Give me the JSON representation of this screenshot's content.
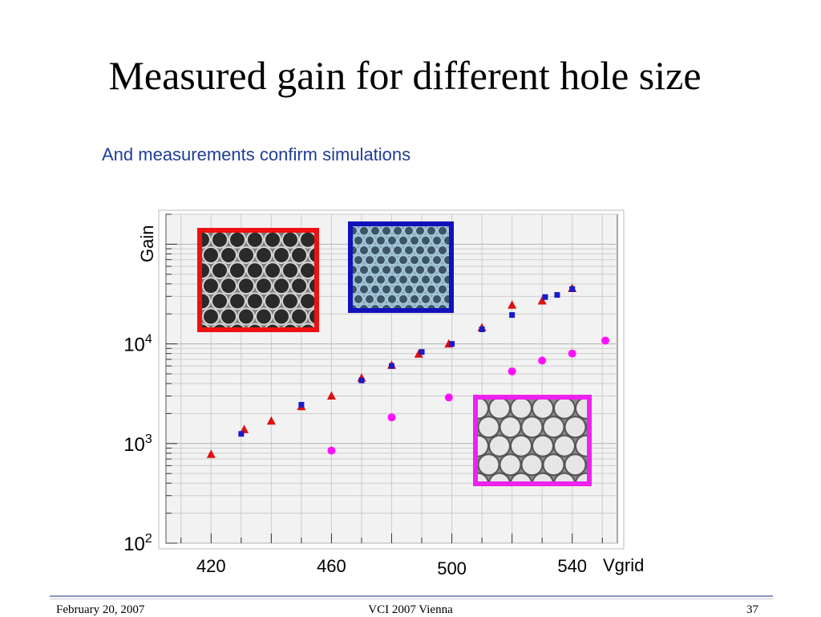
{
  "slide": {
    "title": "Measured gain for different hole size",
    "subtitle": "And measurements confirm simulations"
  },
  "footer": {
    "date": "February 20, 2007",
    "event": "VCI 2007 Vienna",
    "page": "37"
  },
  "colors": {
    "frame": "#ffffff",
    "plot_bg": "#f2f2f2",
    "grid": "#cccccc",
    "red": "#e01010",
    "blue": "#1a1acc",
    "magenta": "#ff10ff",
    "inset_red_border": "#ee1111",
    "inset_blue_border": "#1111bb",
    "inset_magenta_border": "#ee22ee"
  },
  "chart_data": {
    "type": "scatter",
    "title": "",
    "xlabel": "Vgrid",
    "ylabel": "Gain",
    "xlim": [
      405,
      555
    ],
    "ylim": [
      100,
      200000
    ],
    "y_scale": "log",
    "grid": true,
    "x_ticks": [
      {
        "value": 420,
        "label": "420"
      },
      {
        "value": 460,
        "label": "460"
      },
      {
        "value": 500,
        "label": "500"
      },
      {
        "value": 540,
        "label": "540"
      }
    ],
    "y_ticks": [
      {
        "value": 100,
        "base": "10",
        "exp": "2"
      },
      {
        "value": 1000,
        "base": "10",
        "exp": "3"
      },
      {
        "value": 10000,
        "base": "10",
        "exp": "4"
      }
    ],
    "series": [
      {
        "marker": "triangle",
        "color": "#e01010",
        "points": [
          [
            420,
            780
          ],
          [
            431,
            1380
          ],
          [
            440,
            1680
          ],
          [
            450,
            2350
          ],
          [
            460,
            3000
          ],
          [
            470,
            4550
          ],
          [
            480,
            6100
          ],
          [
            489,
            7900
          ],
          [
            499,
            10000
          ],
          [
            510,
            14500
          ],
          [
            520,
            24500
          ],
          [
            530,
            27000
          ],
          [
            540,
            36000
          ]
        ]
      },
      {
        "marker": "square",
        "color": "#1a1acc",
        "points": [
          [
            430,
            1250
          ],
          [
            450,
            2450
          ],
          [
            470,
            4300
          ],
          [
            480,
            6000
          ],
          [
            490,
            8300
          ],
          [
            500,
            10000
          ],
          [
            510,
            14000
          ],
          [
            520,
            19500
          ],
          [
            531,
            29500
          ],
          [
            535,
            31000
          ],
          [
            540,
            35500
          ]
        ]
      },
      {
        "marker": "circle",
        "color": "#ff10ff",
        "points": [
          [
            460,
            850
          ],
          [
            480,
            1830
          ],
          [
            499,
            2900
          ],
          [
            520,
            5300
          ],
          [
            530,
            6800
          ],
          [
            540,
            8000
          ],
          [
            551,
            10800
          ]
        ]
      }
    ],
    "insets": [
      {
        "name": "small-hole-micrograph",
        "border": "#ee1111",
        "fill": "#7a7a7a",
        "hole": "#2a2a2a",
        "cell": "#d8d8d8"
      },
      {
        "name": "dense-hole-micrograph",
        "border": "#1111bb",
        "fill": "#7fa6bd",
        "hole": "#3b5566",
        "cell": "#a8c7d8"
      },
      {
        "name": "large-hole-micrograph",
        "border": "#ee22ee",
        "fill": "#8a8a8a",
        "hole": "#e6e6e6",
        "cell": "#555555"
      }
    ]
  }
}
